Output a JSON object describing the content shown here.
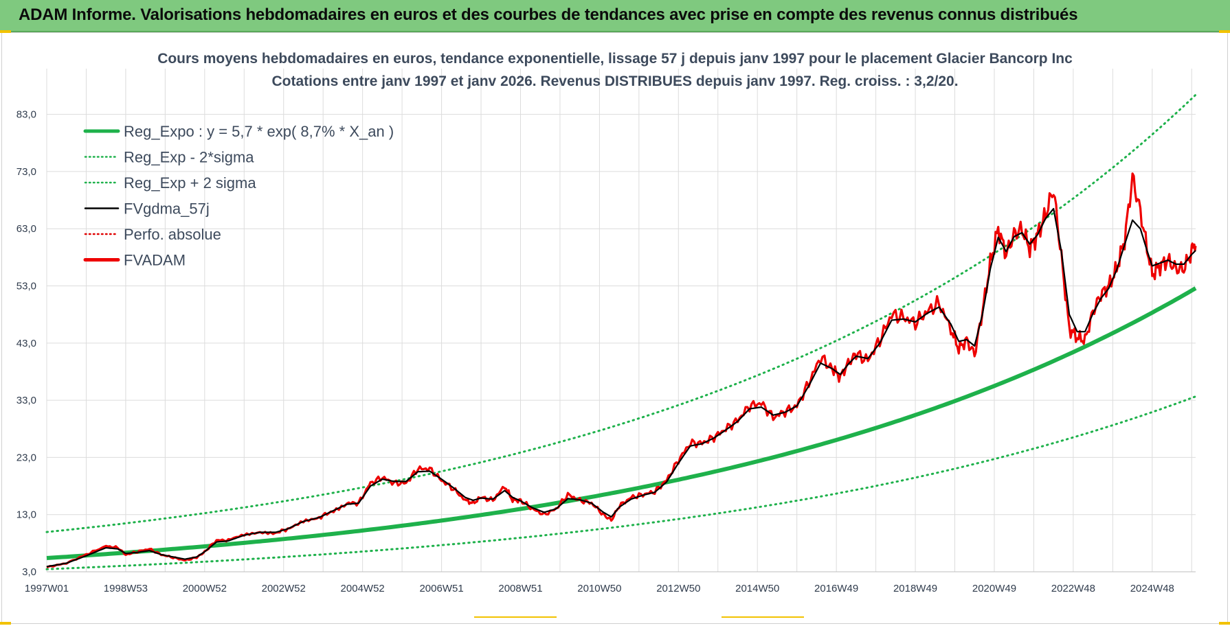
{
  "header": {
    "title": "ADAM Informe. Valorisations hebdomadaires en euros et des courbes de tendances avec prise en compte des revenus connus distribués"
  },
  "colors": {
    "banner": "#7fc97f",
    "reg_expo": "#1eb14b",
    "sigma": "#1eb14b",
    "fvgdma": "#000000",
    "perfo": "#e00000",
    "fvadam": "#ee0000",
    "grid": "#dcdcdc"
  },
  "chart_data": {
    "type": "line",
    "title": "Cours moyens hebdomadaires en euros, tendance exponentielle, lissage 57 j depuis janv 1997 pour le placement Glacier Bancorp Inc",
    "subtitle": "Cotations entre janv 1997 et janv 2026. Revenus DISTRIBUES depuis janv 1997. Reg. croiss. : 3,2/20.",
    "xlabel": "",
    "ylabel": "",
    "xlim": [
      1997.0,
      2026.1
    ],
    "ylim": [
      3.0,
      91.0
    ],
    "y_ticks": [
      "3,0",
      "13,0",
      "23,0",
      "33,0",
      "43,0",
      "53,0",
      "63,0",
      "73,0",
      "83,0"
    ],
    "y_tick_values": [
      3,
      13,
      23,
      33,
      43,
      53,
      63,
      73,
      83
    ],
    "x_ticks": [
      "1997W01",
      "1998W53",
      "2000W52",
      "2002W52",
      "2004W52",
      "2006W51",
      "2008W51",
      "2010W50",
      "2012W50",
      "2014W50",
      "2016W49",
      "2018W49",
      "2020W49",
      "2022W48",
      "2024W48"
    ],
    "x_tick_values": [
      1997.0,
      1999.0,
      2001.0,
      2003.0,
      2005.0,
      2007.0,
      2009.0,
      2011.0,
      2013.0,
      2015.0,
      2017.0,
      2019.0,
      2021.0,
      2023.0,
      2025.0
    ],
    "legend_position": "top-left",
    "legend": [
      {
        "label": "Reg_Expo : y = 5,7 * exp( 8,7% *  X_an )",
        "style": "solid-thick",
        "color": "#1eb14b"
      },
      {
        "label": "Reg_Exp - 2*sigma",
        "style": "dotted",
        "color": "#1eb14b"
      },
      {
        "label": "Reg_Exp + 2 sigma",
        "style": "dotted",
        "color": "#1eb14b"
      },
      {
        "label": "FVgdma_57j",
        "style": "solid",
        "color": "#000000"
      },
      {
        "label": "Perfo. absolue",
        "style": "dotted",
        "color": "#e00000"
      },
      {
        "label": "FVADAM",
        "style": "solid-thick",
        "color": "#ee0000"
      }
    ],
    "series": [
      {
        "name": "Reg_Expo",
        "formula": "5,7 * exp(0,087 * X_an)",
        "start": 1997.0,
        "end": 2026.1
      },
      {
        "name": "Reg_Exp + 2 sigma",
        "start": 1997.0,
        "end": 2026.1,
        "cap": 91.0
      },
      {
        "name": "Reg_Exp - 2*sigma",
        "start": 1997.0,
        "end": 2026.1
      },
      {
        "name": "FVADAM",
        "x": [
          1997.0,
          1997.5,
          1998.0,
          1998.5,
          1998.8,
          1999.0,
          1999.3,
          1999.6,
          1999.9,
          2000.2,
          2000.5,
          2000.8,
          2001.0,
          2001.3,
          2001.6,
          2002.0,
          2002.4,
          2002.8,
          2003.1,
          2003.5,
          2003.9,
          2004.2,
          2004.6,
          2004.9,
          2005.2,
          2005.5,
          2005.8,
          2006.1,
          2006.4,
          2006.7,
          2007.0,
          2007.3,
          2007.6,
          2007.8,
          2008.0,
          2008.3,
          2008.6,
          2008.8,
          2009.0,
          2009.3,
          2009.6,
          2009.9,
          2010.2,
          2010.5,
          2010.8,
          2011.1,
          2011.3,
          2011.5,
          2011.8,
          2012.1,
          2012.4,
          2012.7,
          2013.0,
          2013.3,
          2013.6,
          2013.9,
          2014.2,
          2014.5,
          2014.8,
          2015.1,
          2015.4,
          2015.7,
          2016.0,
          2016.3,
          2016.6,
          2016.9,
          2017.1,
          2017.3,
          2017.5,
          2017.8,
          2018.1,
          2018.4,
          2018.7,
          2019.0,
          2019.3,
          2019.6,
          2019.9,
          2020.1,
          2020.3,
          2020.5,
          2020.7,
          2020.9,
          2021.1,
          2021.3,
          2021.5,
          2021.7,
          2021.9,
          2022.1,
          2022.3,
          2022.5,
          2022.7,
          2022.9,
          2023.1,
          2023.3,
          2023.5,
          2023.7,
          2023.9,
          2024.1,
          2024.3,
          2024.5,
          2024.7,
          2024.9,
          2025.0,
          2025.2,
          2025.4,
          2025.6,
          2025.8,
          2026.0,
          2026.1
        ],
        "values": [
          3.8,
          4.5,
          6.0,
          7.5,
          7.2,
          6.0,
          6.5,
          7.0,
          6.0,
          5.5,
          5.0,
          5.5,
          6.5,
          8.5,
          8.5,
          9.5,
          10.0,
          9.8,
          10.5,
          12.0,
          12.5,
          13.5,
          15.0,
          15.0,
          18.5,
          19.5,
          18.5,
          18.5,
          21.0,
          21.0,
          19.0,
          17.5,
          15.5,
          15.0,
          16.0,
          15.5,
          18.0,
          15.5,
          15.5,
          14.0,
          13.0,
          14.0,
          16.5,
          15.5,
          15.0,
          13.0,
          12.0,
          14.5,
          16.0,
          16.5,
          17.0,
          19.0,
          22.5,
          25.5,
          25.5,
          26.5,
          28.0,
          29.5,
          32.0,
          32.5,
          30.0,
          31.0,
          32.0,
          36.0,
          40.5,
          38.5,
          37.0,
          39.5,
          41.0,
          40.0,
          43.5,
          48.0,
          47.5,
          46.5,
          48.5,
          50.0,
          45.5,
          42.0,
          43.5,
          41.0,
          48.5,
          57.0,
          63.0,
          58.5,
          62.0,
          63.0,
          59.5,
          62.0,
          65.5,
          70.0,
          58.0,
          45.5,
          44.0,
          43.5,
          48.5,
          51.5,
          53.0,
          56.0,
          61.0,
          72.0,
          66.0,
          58.5,
          55.0,
          56.5,
          57.5,
          56.0,
          56.0,
          59.0,
          60.0
        ]
      },
      {
        "name": "FVgdma_57j",
        "x": [
          1997.0,
          1997.5,
          1998.0,
          1998.5,
          1998.8,
          1999.0,
          1999.3,
          1999.6,
          1999.9,
          2000.2,
          2000.5,
          2000.8,
          2001.0,
          2001.3,
          2001.6,
          2002.0,
          2002.4,
          2002.8,
          2003.1,
          2003.5,
          2003.9,
          2004.2,
          2004.6,
          2004.9,
          2005.2,
          2005.5,
          2005.8,
          2006.1,
          2006.4,
          2006.7,
          2007.0,
          2007.3,
          2007.6,
          2007.8,
          2008.0,
          2008.3,
          2008.6,
          2008.8,
          2009.0,
          2009.3,
          2009.6,
          2009.9,
          2010.2,
          2010.5,
          2010.8,
          2011.1,
          2011.3,
          2011.5,
          2011.8,
          2012.1,
          2012.4,
          2012.7,
          2013.0,
          2013.3,
          2013.6,
          2013.9,
          2014.2,
          2014.5,
          2014.8,
          2015.1,
          2015.4,
          2015.7,
          2016.0,
          2016.3,
          2016.6,
          2016.9,
          2017.1,
          2017.3,
          2017.5,
          2017.8,
          2018.1,
          2018.4,
          2018.7,
          2019.0,
          2019.3,
          2019.6,
          2019.9,
          2020.1,
          2020.3,
          2020.5,
          2020.7,
          2020.9,
          2021.1,
          2021.3,
          2021.5,
          2021.7,
          2021.9,
          2022.1,
          2022.3,
          2022.5,
          2022.7,
          2022.9,
          2023.1,
          2023.3,
          2023.5,
          2023.7,
          2023.9,
          2024.1,
          2024.3,
          2024.5,
          2024.7,
          2024.9,
          2025.0,
          2025.2,
          2025.4,
          2025.6,
          2025.8,
          2026.0,
          2026.1
        ],
        "values": [
          3.9,
          4.5,
          5.8,
          7.2,
          7.0,
          6.2,
          6.4,
          6.7,
          6.0,
          5.6,
          5.2,
          5.6,
          6.5,
          8.2,
          8.4,
          9.4,
          9.9,
          9.9,
          10.5,
          11.8,
          12.5,
          13.5,
          14.8,
          15.0,
          18.0,
          19.2,
          18.8,
          18.8,
          20.5,
          20.6,
          19.2,
          17.7,
          16.0,
          15.5,
          15.9,
          15.7,
          17.2,
          16.0,
          15.4,
          14.2,
          13.4,
          14.0,
          15.8,
          15.6,
          15.0,
          13.4,
          12.6,
          14.3,
          15.7,
          16.4,
          16.9,
          18.7,
          22.0,
          25.0,
          25.4,
          26.4,
          27.8,
          29.3,
          31.5,
          31.8,
          30.4,
          30.9,
          32.0,
          35.5,
          39.5,
          38.5,
          37.5,
          39.3,
          40.7,
          40.3,
          43.0,
          47.0,
          47.2,
          46.7,
          48.2,
          49.3,
          46.3,
          43.3,
          43.6,
          42.5,
          48.0,
          56.0,
          61.5,
          59.0,
          61.6,
          62.3,
          60.3,
          62.0,
          64.8,
          66.5,
          59.0,
          48.0,
          45.0,
          45.0,
          48.2,
          50.8,
          52.6,
          55.8,
          60.2,
          64.5,
          63.0,
          58.5,
          56.5,
          57.0,
          57.5,
          56.8,
          56.8,
          58.5,
          59.2
        ]
      }
    ]
  }
}
